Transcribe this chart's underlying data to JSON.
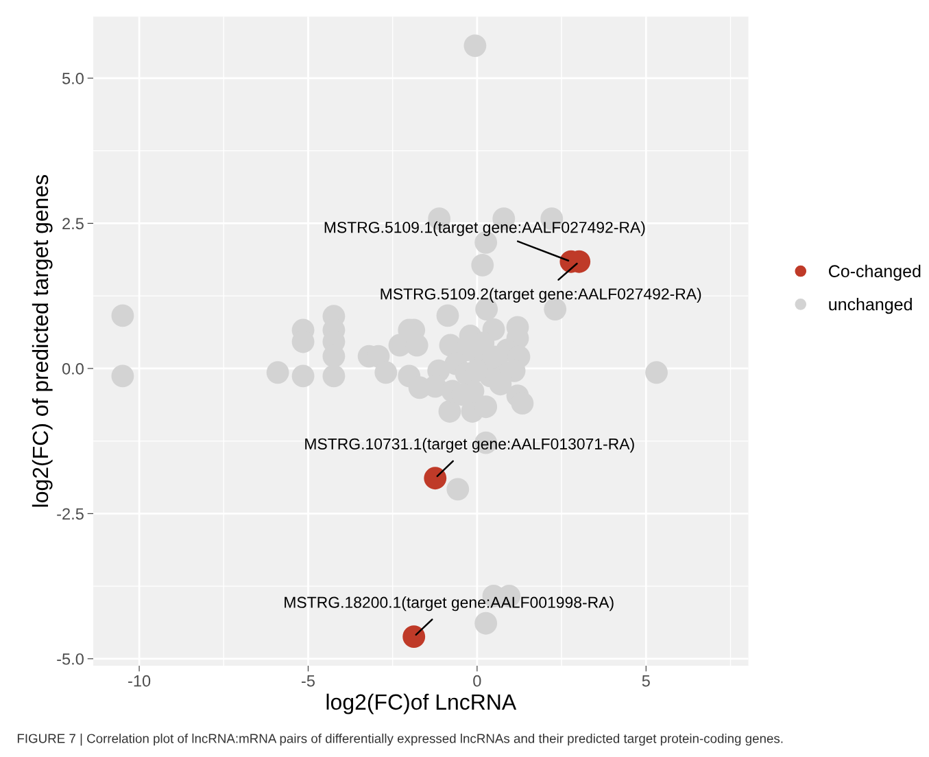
{
  "chart_data": {
    "type": "scatter",
    "xlabel": "log2(FC)of LncRNA",
    "ylabel": "log2(FC) of predicted target genes",
    "xlim": [
      -11.36,
      8.03
    ],
    "ylim": [
      -5.12,
      6.06
    ],
    "xticks": [
      -10,
      {
        "value": -7.5,
        "label": null
      },
      -5,
      {
        "value": -2.5,
        "label": null
      },
      0,
      {
        "value": 2.5,
        "label": null
      },
      5,
      {
        "value": 7.5,
        "label": null
      }
    ],
    "yticks": [
      {
        "value": -5,
        "label": "-5.0"
      },
      {
        "value": -3.75,
        "label": null
      },
      -2.5,
      {
        "value": -1.25,
        "label": null
      },
      {
        "value": 0,
        "label": "0.0"
      },
      {
        "value": 1.25,
        "label": null
      },
      2.5,
      {
        "value": 3.75,
        "label": null
      },
      {
        "value": 5,
        "label": "5.0"
      }
    ],
    "grid": true,
    "legend": "right",
    "marker": "circle",
    "series": [
      {
        "name": "Co-changed",
        "color": "#bf3a28",
        "x": [
          2.78,
          3.02,
          -1.24,
          -1.87
        ],
        "values": [
          1.84,
          1.84,
          -1.89,
          -4.62
        ]
      },
      {
        "name": "unchanged",
        "color": "#d3d3d3",
        "x": [
          -0.06,
          -1.12,
          0.79,
          2.21,
          0.26,
          0.16,
          0.28,
          2.31,
          -10.49,
          -10.49,
          -5.9,
          -5.15,
          -5.15,
          -5.15,
          -4.24,
          -4.24,
          -4.24,
          -4.24,
          -4.24,
          -0.87,
          -3.2,
          -2.92,
          -2.7,
          -2.29,
          -2.01,
          -1.87,
          -1.78,
          -2.01,
          -1.7,
          -0.81,
          -0.14,
          0.26,
          1.2,
          1.34,
          5.31,
          0.26,
          -0.57,
          0.49,
          0.95,
          0.26,
          -0.79,
          -0.2,
          0.49,
          1.2,
          1.2,
          0.89,
          1.24,
          1.1,
          0.73,
          0.08,
          -0.32,
          -0.63,
          -1.14,
          -1.24,
          -0.73,
          -0.12,
          0.39,
          0.18,
          -0.32,
          -0.02,
          0.49,
          0.69,
          -0.43
        ],
        "values": [
          5.56,
          2.58,
          2.58,
          2.58,
          2.17,
          1.78,
          1.02,
          1.02,
          0.91,
          -0.13,
          -0.07,
          0.66,
          0.46,
          -0.13,
          0.9,
          0.66,
          0.46,
          0.21,
          -0.13,
          0.91,
          0.21,
          0.21,
          -0.07,
          0.4,
          0.66,
          0.66,
          0.4,
          -0.13,
          -0.33,
          -0.74,
          -0.74,
          -0.66,
          -0.47,
          -0.6,
          -0.07,
          -1.28,
          -2.08,
          -3.92,
          -3.92,
          -4.39,
          0.4,
          0.56,
          0.67,
          0.71,
          0.52,
          0.32,
          0.2,
          -0.04,
          -0.04,
          0.2,
          0.32,
          0.08,
          -0.04,
          -0.31,
          -0.39,
          -0.39,
          -0.13,
          0.44,
          -0.09,
          -0.04,
          0.2,
          -0.27,
          -0.45
        ]
      }
    ],
    "annotations": [
      {
        "text": "MSTRG.5109.1(target gene:AALF027492-RA)",
        "x": 2.78,
        "y": 1.84
      },
      {
        "text": "MSTRG.5109.2(target gene:AALF027492-RA)",
        "x": 3.02,
        "y": 1.84
      },
      {
        "text": "MSTRG.10731.1(target gene:AALF013071-RA)",
        "x": -1.24,
        "y": -1.89
      },
      {
        "text": "MSTRG.18200.1(target gene:AALF001998-RA)",
        "x": -1.87,
        "y": -4.62
      },
      "FIGURE 7 | Correlation plot of lncRNA:mRNA pairs of differentially expressed lncRNAs and their predicted target protein-coding genes."
    ]
  }
}
